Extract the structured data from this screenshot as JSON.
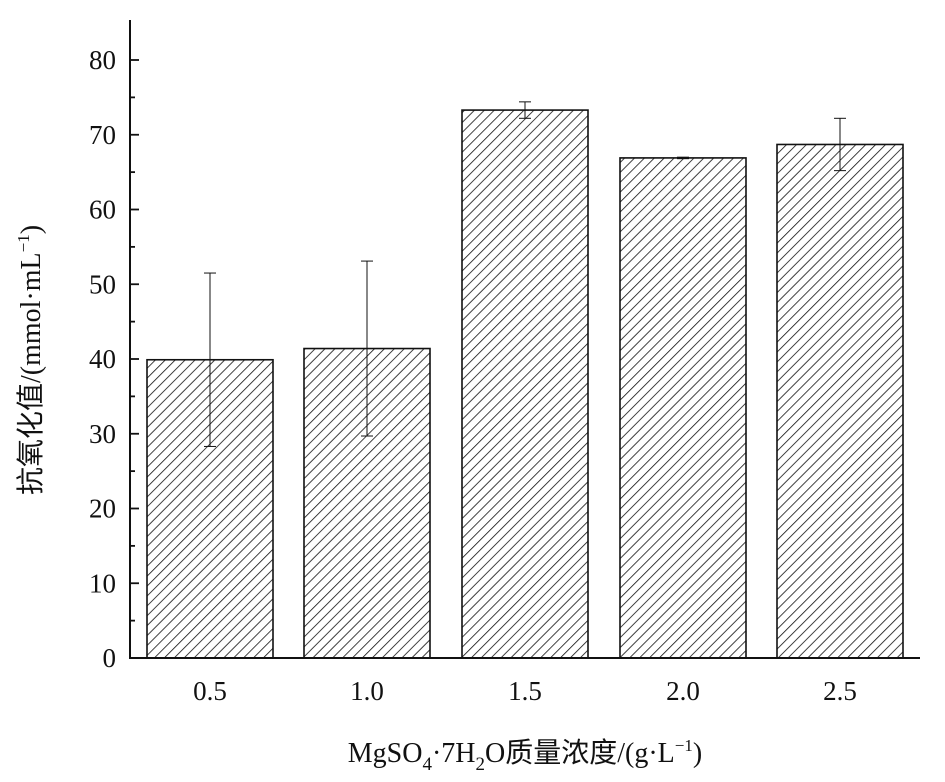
{
  "chart_data": {
    "type": "bar",
    "categories": [
      "0.5",
      "1.0",
      "1.5",
      "2.0",
      "2.5"
    ],
    "values": [
      39.9,
      41.4,
      73.3,
      66.9,
      68.7
    ],
    "errors": [
      11.6,
      11.7,
      1.1,
      0.1,
      3.5
    ],
    "ylim": [
      0,
      85
    ],
    "yticks": [
      "0",
      "10",
      "20",
      "30",
      "40",
      "50",
      "60",
      "70",
      "80"
    ],
    "ytick_values": [
      0,
      10,
      20,
      30,
      40,
      50,
      60,
      70,
      80
    ],
    "xlabel": {
      "base": "MgSO",
      "sub1": "4",
      "middle": "·7H",
      "sub2": "2",
      "tail": "O质量浓度/(g·L",
      "sup": "−1",
      "end": ")"
    },
    "ylabel": {
      "base": "抗氧化值/(mmol·mL",
      "sup": "−1",
      "end": ")"
    },
    "bar_fill": "hatch",
    "colors": {
      "bar_stroke": "#111111",
      "hatch": "#111111",
      "axis": "#111111"
    },
    "legend": "none",
    "grid": false
  }
}
